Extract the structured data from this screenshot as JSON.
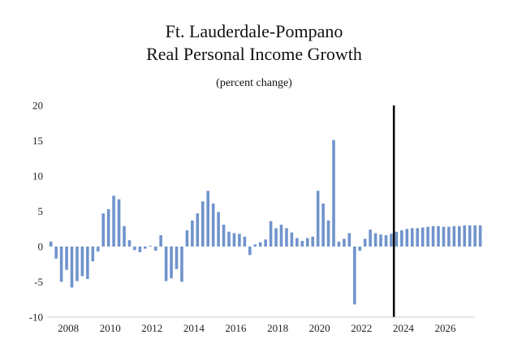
{
  "chart_data": {
    "type": "bar",
    "title_line1": "Ft. Lauderdale-Pompano",
    "title_line2": "Real Personal Income Growth",
    "subtitle": "(percent change)",
    "xlabel": "",
    "ylabel": "",
    "ylim": [
      -10,
      20
    ],
    "y_ticks": [
      "20",
      "15",
      "10",
      "5",
      "0",
      "-5",
      "-10"
    ],
    "x_tick_labels": [
      "2008",
      "2010",
      "2012",
      "2014",
      "2016",
      "2018",
      "2020",
      "2022",
      "2024",
      "2026"
    ],
    "first_period": "2007Q2",
    "forecast_divider_after_index": 65,
    "bar_color": "#7094cc",
    "divider_color": "#000000",
    "series": [
      {
        "name": "Real Personal Income Growth",
        "values": [
          0.7,
          -1.7,
          -5.0,
          -3.3,
          -5.8,
          -4.9,
          -4.2,
          -4.6,
          -2.1,
          -0.7,
          4.7,
          5.3,
          7.2,
          6.7,
          2.9,
          0.9,
          -0.5,
          -0.8,
          -0.3,
          0.1,
          -0.6,
          1.6,
          -4.9,
          -4.5,
          -3.2,
          -5.0,
          2.3,
          3.7,
          4.7,
          6.4,
          7.9,
          6.1,
          4.9,
          3.1,
          2.1,
          1.9,
          1.8,
          1.4,
          -1.2,
          0.3,
          0.6,
          1.0,
          3.6,
          2.6,
          3.1,
          2.6,
          2.0,
          1.2,
          0.8,
          1.2,
          1.4,
          7.9,
          6.1,
          3.7,
          15.1,
          0.7,
          1.1,
          1.9,
          -8.2,
          -0.6,
          1.1,
          2.4,
          1.9,
          1.7,
          1.6,
          1.8,
          2.1,
          2.3,
          2.5,
          2.6,
          2.6,
          2.7,
          2.8,
          2.9,
          2.9,
          2.8,
          2.8,
          2.9,
          2.9,
          3.0,
          3.0,
          3.0,
          3.0
        ]
      }
    ]
  }
}
